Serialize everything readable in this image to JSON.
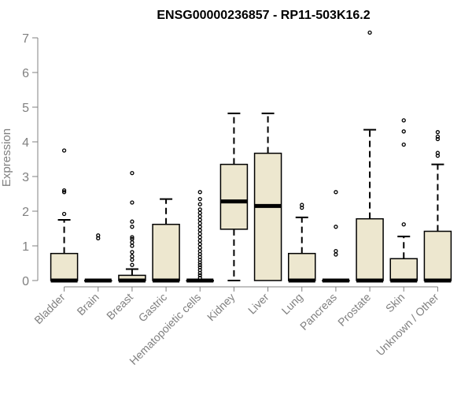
{
  "chart_data": {
    "type": "box",
    "title": "ENSG00000236857 - RP11-503K16.2",
    "xlabel": "",
    "ylabel": "Expression",
    "ylim": [
      0,
      7.3
    ],
    "yticks": [
      0,
      1,
      2,
      3,
      4,
      5,
      6,
      7
    ],
    "grid": false,
    "categories": [
      "Bladder",
      "Brain",
      "Breast",
      "Gastric",
      "Hematopoietic cells",
      "Kidney",
      "Liver",
      "Lung",
      "Pancreas",
      "Prostate",
      "Skin",
      "Unknown / Other"
    ],
    "boxes": [
      {
        "q1": 0,
        "median": 0,
        "q3": 0.78,
        "whisker_low": 0,
        "whisker_high": 1.75,
        "outliers": [
          1.92,
          2.55,
          2.6,
          3.75
        ]
      },
      {
        "q1": 0,
        "median": 0,
        "q3": 0,
        "whisker_low": 0,
        "whisker_high": 0,
        "outliers": [
          1.22,
          1.3
        ]
      },
      {
        "q1": 0,
        "median": 0,
        "q3": 0.15,
        "whisker_low": 0,
        "whisker_high": 0.33,
        "outliers": [
          0.45,
          0.6,
          0.7,
          0.82,
          1.0,
          1.1,
          1.2,
          1.25,
          1.55,
          1.7,
          2.25,
          3.1
        ]
      },
      {
        "q1": 0,
        "median": 0,
        "q3": 1.62,
        "whisker_low": 0,
        "whisker_high": 2.35,
        "outliers": []
      },
      {
        "q1": 0,
        "median": 0,
        "q3": 0,
        "whisker_low": 0,
        "whisker_high": 0,
        "outliers": [
          0.08,
          0.15,
          0.22,
          0.3,
          0.38,
          0.45,
          0.52,
          0.6,
          0.68,
          0.76,
          0.85,
          0.95,
          1.05,
          1.15,
          1.25,
          1.35,
          1.45,
          1.55,
          1.65,
          1.75,
          1.85,
          1.95,
          2.05,
          2.2,
          2.35,
          2.55
        ]
      },
      {
        "q1": 1.48,
        "median": 2.28,
        "q3": 3.35,
        "whisker_low": 0,
        "whisker_high": 4.82,
        "outliers": []
      },
      {
        "q1": 0,
        "median": 2.15,
        "q3": 3.67,
        "whisker_low": 0,
        "whisker_high": 4.82,
        "outliers": []
      },
      {
        "q1": 0,
        "median": 0,
        "q3": 0.78,
        "whisker_low": 0,
        "whisker_high": 1.82,
        "outliers": [
          2.1,
          2.18
        ]
      },
      {
        "q1": 0,
        "median": 0,
        "q3": 0,
        "whisker_low": 0,
        "whisker_high": 0,
        "outliers": [
          0.75,
          0.85,
          1.55,
          2.55
        ]
      },
      {
        "q1": 0,
        "median": 0,
        "q3": 1.78,
        "whisker_low": 0,
        "whisker_high": 4.35,
        "outliers": [
          7.15
        ]
      },
      {
        "q1": 0,
        "median": 0,
        "q3": 0.63,
        "whisker_low": 0,
        "whisker_high": 1.27,
        "outliers": [
          1.62,
          3.92,
          4.3,
          4.62
        ]
      },
      {
        "q1": 0,
        "median": 0,
        "q3": 1.42,
        "whisker_low": 0,
        "whisker_high": 3.35,
        "outliers": [
          3.6,
          3.68,
          4.08,
          4.15,
          4.28
        ]
      }
    ],
    "colors": {
      "box_fill": "#ede7cf",
      "stroke": "#000000",
      "axis": "#808080",
      "label": "#808080",
      "title": "#000000"
    }
  }
}
